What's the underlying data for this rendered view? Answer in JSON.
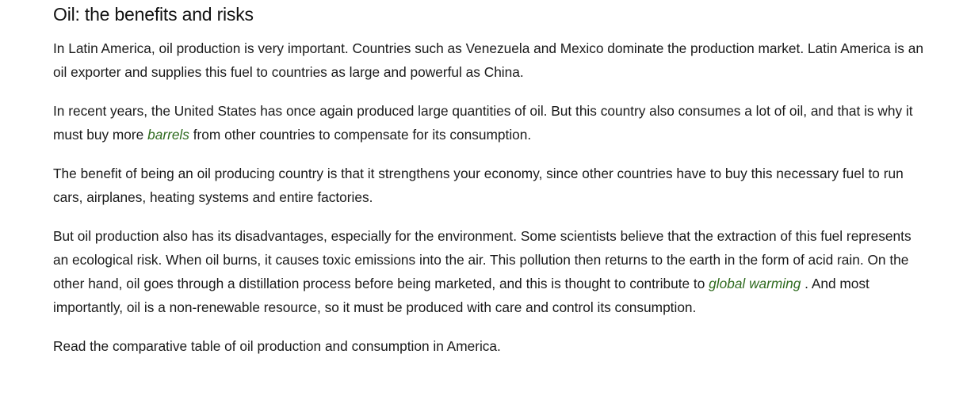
{
  "article": {
    "title": "Oil: the benefits and risks",
    "p1": "In Latin America, oil production is very important. Countries such as Venezuela and Mexico dominate the production market. Latin America is an oil exporter and supplies this fuel to countries as large and powerful as China.",
    "p2": {
      "before": "In recent years, the United States has once again produced large quantities of oil. But this country also consumes a lot of oil, and that is why it must buy more ",
      "term": "barrels",
      "after": " from other countries to compensate for its consumption."
    },
    "p3": "The benefit of being an oil producing country is that it strengthens your economy, since other countries have to buy this necessary fuel to run cars, airplanes, heating systems and entire factories.",
    "p4": {
      "before": "But oil production also has its disadvantages, especially for the environment. Some scientists believe that the extraction of this fuel represents an ecological risk. When oil burns, it causes toxic emissions into the air. This pollution then returns to the earth in the form of acid rain. On the other hand, oil goes through a distillation process before being marketed, and this is thought to contribute to ",
      "term": "global warming",
      "after": " . And most importantly, oil is a non-renewable resource, so it must be produced with care and control its consumption."
    },
    "p5": "Read the comparative table of oil production and consumption in America.",
    "term_color": "#2f6b1f"
  }
}
